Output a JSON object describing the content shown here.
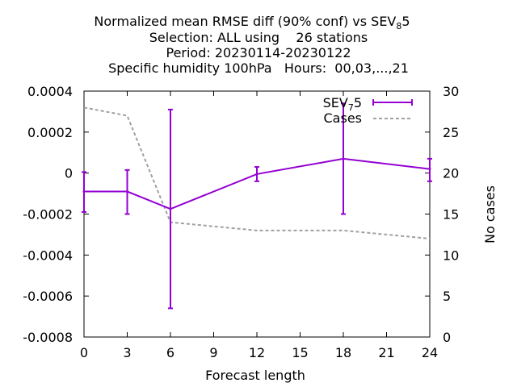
{
  "chart_data": {
    "type": "line",
    "title_lines": [
      "Normalized mean RMSE diff (90% conf) vs SEV",
      "Selection: ALL using    26 stations",
      "Period: 20230114-20230122",
      "Specific humidity 100hPa   Hours:  00,03,...,21"
    ],
    "title_first_sub": "8",
    "title_first_tail": "5",
    "xlabel": "Forecast length",
    "ylabel_right": "No cases",
    "x_ticks": [
      "0",
      "3",
      "6",
      "9",
      "12",
      "15",
      "18",
      "21",
      "24"
    ],
    "y_ticks": [
      "0.0004",
      "0.0002",
      "0",
      "-0.0002",
      "-0.0004",
      "-0.0006",
      "-0.0008"
    ],
    "y2_ticks": [
      "30",
      "25",
      "20",
      "15",
      "10",
      "5",
      "0"
    ],
    "xlim": [
      0,
      24
    ],
    "ylim": [
      -0.0008,
      0.0004
    ],
    "y2lim": [
      0,
      30
    ],
    "grid": false,
    "legend_position": "top-right",
    "series": [
      {
        "name": "SEV",
        "name_sub": "7",
        "name_tail": "5",
        "color": "#9400d3",
        "axis": "left",
        "style": "errorbars",
        "x": [
          0,
          3,
          6,
          12,
          18,
          24
        ],
        "y": [
          -9e-05,
          -9e-05,
          -0.000175,
          -5e-06,
          7e-05,
          2e-05
        ],
        "err_low": [
          -0.00019,
          -0.0002,
          -0.00066,
          -4e-05,
          -0.0002,
          -4e-05
        ],
        "err_high": [
          5e-06,
          1.5e-05,
          0.00031,
          3e-05,
          0.00034,
          7e-05
        ]
      },
      {
        "name": "Cases",
        "color": "#a0a0a0",
        "axis": "right",
        "style": "dashed",
        "x": [
          0,
          3,
          6,
          9,
          12,
          15,
          18,
          21,
          24
        ],
        "y": [
          28,
          27,
          14,
          13.5,
          13,
          13,
          13,
          12.5,
          12
        ]
      }
    ]
  }
}
